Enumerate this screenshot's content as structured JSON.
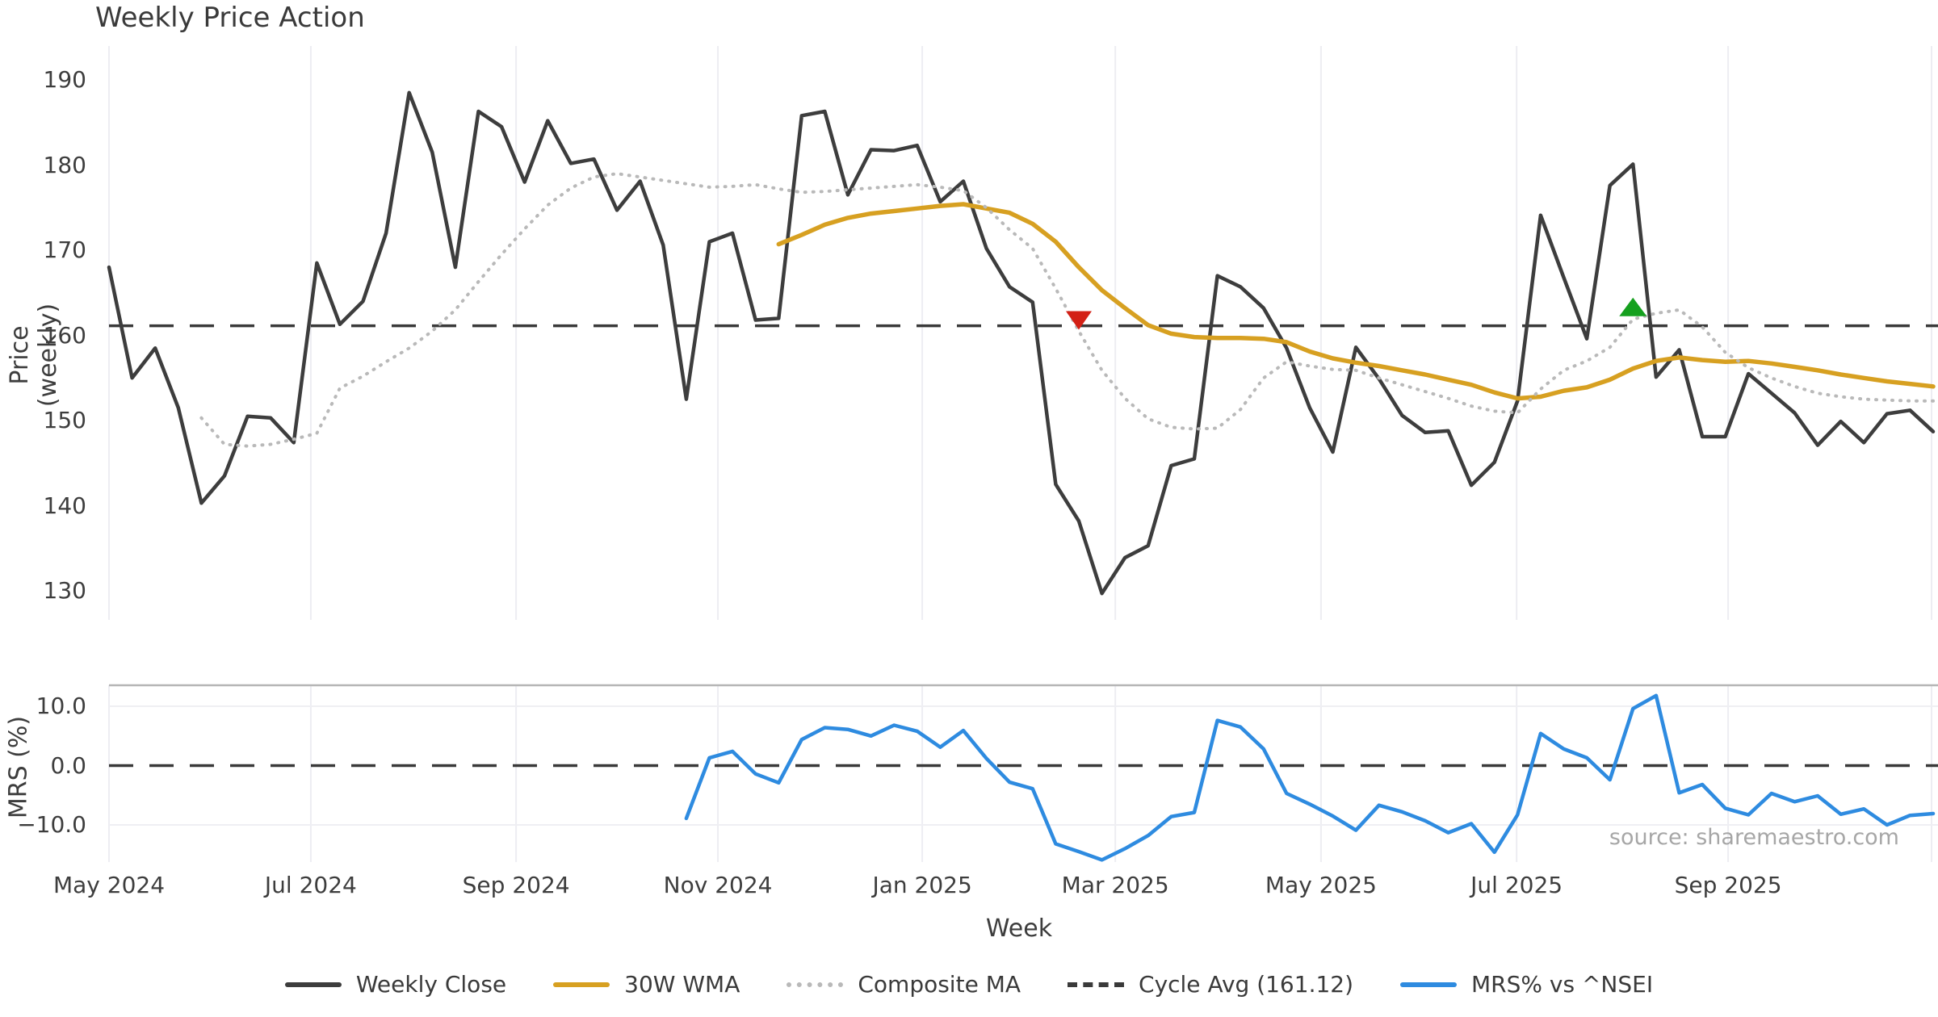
{
  "title": "Weekly Price Action",
  "source": "source: sharemaestro.com",
  "colors": {
    "close": "#3d3d3d",
    "wma": "#d7a021",
    "composite": "#b9b9b9",
    "cycle_dash": "#3a3a3a",
    "mrs": "#2e8be0",
    "marker_down": "#d32015",
    "marker_up": "#15a01e",
    "grid": "#ededf2",
    "panel_border": "#b5b5b5",
    "text": "#3d3d3d",
    "source_text": "#a6a6a6"
  },
  "price_axis": {
    "label": "Price (weekly)",
    "ticks": [
      {
        "label": "190",
        "value": 190
      },
      {
        "label": "180",
        "value": 180
      },
      {
        "label": "170",
        "value": 170
      },
      {
        "label": "160",
        "value": 160
      },
      {
        "label": "150",
        "value": 150
      },
      {
        "label": "140",
        "value": 140
      },
      {
        "label": "130",
        "value": 130
      }
    ]
  },
  "mrs_axis": {
    "label": "MRS (%)",
    "ticks": [
      {
        "label": "10.0",
        "value": 10
      },
      {
        "label": "0.0",
        "value": 0
      },
      {
        "label": "−10.0",
        "value": -10
      }
    ]
  },
  "x_axis": {
    "label": "Week",
    "ticks": [
      {
        "label": "May 2024",
        "week": 0
      },
      {
        "label": "Jul 2024",
        "week": 8.74
      },
      {
        "label": "Sep 2024",
        "week": 17.63
      },
      {
        "label": "Nov 2024",
        "week": 26.37
      },
      {
        "label": "Jan 2025",
        "week": 35.22
      },
      {
        "label": "Mar 2025",
        "week": 43.58
      },
      {
        "label": "May 2025",
        "week": 52.49
      },
      {
        "label": "Jul 2025",
        "week": 60.96
      },
      {
        "label": "Sep 2025",
        "week": 70.12
      },
      {
        "label": "",
        "week": 78.93
      }
    ]
  },
  "legend": {
    "items": [
      {
        "label": "Weekly Close",
        "style": "solid",
        "color": "#3d3d3d"
      },
      {
        "label": "30W WMA",
        "style": "solid",
        "color": "#d7a021"
      },
      {
        "label": "Composite MA",
        "style": "dotted",
        "color": "#b9b9b9"
      },
      {
        "label": "Cycle Avg (161.12)",
        "style": "dashed",
        "color": "#3a3a3a"
      },
      {
        "label": "MRS% vs ^NSEI",
        "style": "solid",
        "color": "#2e8be0"
      }
    ]
  },
  "chart_data": {
    "type": "line",
    "xlabel": "Week",
    "weeks_total": 79,
    "panels": [
      {
        "id": "price",
        "ylabel": "Price (weekly)",
        "ylim": [
          124,
          193.5
        ],
        "cycle_avg": 161.12,
        "series": [
          {
            "name": "Weekly Close",
            "style": "solid",
            "width": 4.5,
            "color": "#3d3d3d",
            "start_week": 0,
            "values": [
              168.0,
              155.0,
              158.5,
              151.5,
              140.3,
              143.5,
              150.5,
              150.3,
              147.4,
              168.5,
              161.3,
              164.0,
              172.0,
              188.5,
              181.5,
              168.0,
              186.3,
              184.5,
              178.0,
              185.2,
              180.2,
              180.7,
              174.7,
              178.1,
              170.6,
              152.5,
              171.0,
              172.0,
              161.8,
              162.0,
              185.8,
              186.3,
              176.5,
              181.8,
              181.7,
              182.3,
              175.7,
              178.1,
              170.2,
              165.7,
              163.9,
              142.5,
              138.2,
              129.7,
              133.9,
              135.3,
              144.7,
              145.5,
              167.0,
              165.7,
              163.2,
              158.5,
              151.5,
              146.3,
              158.6,
              154.9,
              150.6,
              148.6,
              148.8,
              142.4,
              145.1,
              152.3,
              174.1,
              166.8,
              159.6,
              177.6,
              180.1,
              155.1,
              158.3,
              148.1,
              148.1,
              155.5,
              153.2,
              150.9,
              147.1,
              149.9,
              147.4,
              150.8,
              151.2,
              148.7
            ]
          },
          {
            "name": "30W WMA",
            "style": "solid",
            "width": 5.5,
            "color": "#d7a021",
            "start_week": 29,
            "values": [
              170.7,
              171.8,
              173.0,
              173.8,
              174.3,
              174.6,
              174.9,
              175.2,
              175.4,
              174.9,
              174.4,
              173.1,
              171.0,
              168.0,
              165.3,
              163.2,
              161.2,
              160.2,
              159.8,
              159.7,
              159.7,
              159.6,
              159.2,
              158.1,
              157.3,
              156.8,
              156.4,
              155.9,
              155.4,
              154.8,
              154.2,
              153.3,
              152.6,
              152.8,
              153.5,
              153.9,
              154.8,
              156.1,
              157.0,
              157.4,
              157.1,
              156.9,
              157.0,
              156.7,
              156.3,
              155.9,
              155.4,
              155.0,
              154.6,
              154.3,
              154.0
            ]
          },
          {
            "name": "Composite MA",
            "style": "dotted",
            "width": 4,
            "color": "#b9b9b9",
            "start_week": 4,
            "values": [
              150.3,
              147.2,
              147.0,
              147.2,
              147.8,
              148.5,
              153.8,
              155.2,
              156.9,
              158.5,
              160.5,
              163.0,
              166.3,
              169.5,
              172.5,
              175.3,
              177.3,
              178.6,
              179.0,
              178.6,
              178.2,
              177.8,
              177.4,
              177.5,
              177.7,
              177.2,
              176.8,
              176.9,
              177.1,
              177.3,
              177.5,
              177.7,
              177.4,
              177.0,
              175.0,
              172.4,
              170.2,
              165.5,
              160.5,
              155.9,
              152.6,
              150.2,
              149.2,
              149.0,
              149.1,
              151.3,
              155.0,
              156.9,
              156.4,
              156.0,
              155.9,
              155.0,
              154.2,
              153.4,
              152.6,
              151.7,
              151.1,
              150.9,
              153.7,
              155.9,
              157.0,
              158.6,
              161.9,
              162.6,
              163.0,
              161.0,
              158.0,
              156.2,
              155.0,
              154.0,
              153.2,
              152.8,
              152.5,
              152.4,
              152.3,
              152.3
            ]
          }
        ],
        "markers": [
          {
            "shape": "triangle-down",
            "name": "sell-signal",
            "color": "#d32015",
            "week": 42,
            "price": 161.8
          },
          {
            "shape": "triangle-up",
            "name": "buy-signal",
            "color": "#15a01e",
            "week": 66,
            "price": 163.2
          }
        ]
      },
      {
        "id": "mrs",
        "ylabel": "MRS (%)",
        "ylim": [
          -15.9,
          13.5
        ],
        "zero_dashed": true,
        "hgrid_values": [
          10,
          -10
        ],
        "series": [
          {
            "name": "MRS% vs ^NSEI",
            "style": "solid",
            "width": 4.5,
            "color": "#2e8be0",
            "start_week": 25,
            "values": [
              -8.9,
              1.3,
              2.4,
              -1.4,
              -2.9,
              4.4,
              6.4,
              6.1,
              5.0,
              6.8,
              5.8,
              3.1,
              5.9,
              1.2,
              -2.8,
              -3.9,
              -13.2,
              -14.5,
              -15.9,
              -14.0,
              -11.8,
              -8.6,
              -7.9,
              7.6,
              6.5,
              2.8,
              -4.7,
              -6.5,
              -8.5,
              -10.9,
              -6.7,
              -7.8,
              -9.3,
              -11.3,
              -9.8,
              -14.6,
              -8.3,
              5.4,
              2.8,
              1.3,
              -2.4,
              9.6,
              11.8,
              -4.6,
              -3.2,
              -7.2,
              -8.3,
              -4.7,
              -6.1,
              -5.1,
              -8.2,
              -7.3,
              -10.0,
              -8.4,
              -8.1
            ]
          }
        ]
      }
    ]
  }
}
